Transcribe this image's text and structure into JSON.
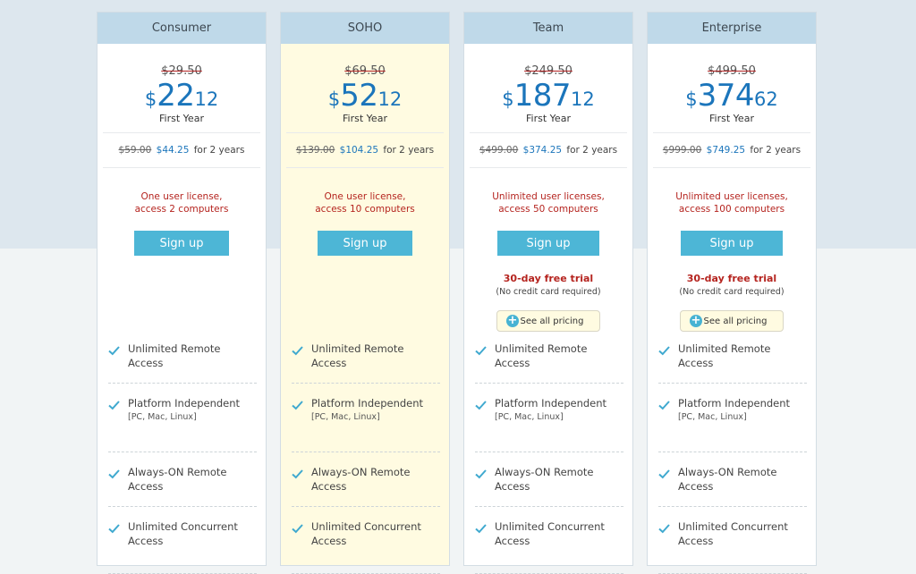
{
  "plans": [
    {
      "name": "Consumer",
      "old_price": "$29.50",
      "currency": "$",
      "price_int": "22",
      "price_cents": "12",
      "period": "First Year",
      "two_year_old": "$59.00",
      "two_year_new": "$44.25",
      "two_year_suffix": "for 2 years",
      "license_line1": "One user license,",
      "license_line2": "access 2 computers",
      "signup_label": "Sign up"
    },
    {
      "name": "SOHO",
      "old_price": "$69.50",
      "currency": "$",
      "price_int": "52",
      "price_cents": "12",
      "period": "First Year",
      "two_year_old": "$139.00",
      "two_year_new": "$104.25",
      "two_year_suffix": "for 2 years",
      "license_line1": "One user license,",
      "license_line2": "access 10 computers",
      "signup_label": "Sign up"
    },
    {
      "name": "Team",
      "old_price": "$249.50",
      "currency": "$",
      "price_int": "187",
      "price_cents": "12",
      "period": "First Year",
      "two_year_old": "$499.00",
      "two_year_new": "$374.25",
      "two_year_suffix": "for 2 years",
      "license_line1": "Unlimited user licenses,",
      "license_line2": "access 50 computers",
      "signup_label": "Sign up",
      "trial": "30-day free trial",
      "no_cc": "(No credit card required)",
      "see_pricing": "See all pricing"
    },
    {
      "name": "Enterprise",
      "old_price": "$499.50",
      "currency": "$",
      "price_int": "374",
      "price_cents": "62",
      "period": "First Year",
      "two_year_old": "$999.00",
      "two_year_new": "$749.25",
      "two_year_suffix": "for 2 years",
      "license_line1": "Unlimited user licenses,",
      "license_line2": "access 100 computers",
      "signup_label": "Sign up",
      "trial": "30-day free trial",
      "no_cc": "(No credit card required)",
      "see_pricing": "See all pricing"
    }
  ],
  "features": [
    {
      "label": "Unlimited Remote Access",
      "sub": ""
    },
    {
      "label": "Platform Independent",
      "sub": "[PC, Mac, Linux]"
    },
    {
      "label": "Always-ON Remote Access",
      "sub": ""
    },
    {
      "label": "Unlimited Concurrent Access",
      "sub": ""
    }
  ],
  "colors": {
    "accent": "#4db6d6",
    "price_blue": "#1b75bb",
    "alert_red": "#b5241f",
    "header_bg": "#bfd9e9",
    "featured_bg": "#fffbe1"
  },
  "icons": {
    "check": "check-icon",
    "plus": "plus-circle-icon"
  }
}
